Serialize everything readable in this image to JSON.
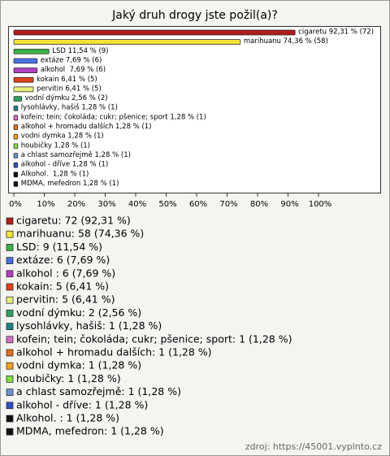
{
  "chart_data": {
    "type": "bar",
    "orientation": "horizontal",
    "title": "Jaký druh drogy jste požil(a)?",
    "bar_labels": [
      "cigaretu 92,31 % (72)",
      "marihuanu 74,36 % (58)",
      "LSD 11,54 % (9)",
      "extáze 7,69 % (6)",
      "alkohol  7,69 % (6)",
      "kokain 6,41 % (5)",
      "pervitin 6,41 % (5)",
      "vodní dýmku 2,56 % (2)",
      "lysohlávky, hašiš 1,28 % (1)",
      "kofein; tein; čokoláda; cukr; pšenice; sport 1,28 % (1)",
      "alkohol + hromadu dalších 1,28 % (1)",
      "vodni dymka 1,28 % (1)",
      "houbičky 1,28 % (1)",
      "a chlast samozřejmě 1,28 % (1)",
      "alkohol - dříve 1,28 % (1)",
      "Alkohol.  1,28 % (1)",
      "MDMA, mefedron 1,28 % (1)"
    ],
    "values": [
      92.31,
      74.36,
      11.54,
      7.69,
      7.69,
      6.41,
      6.41,
      2.56,
      1.28,
      1.28,
      1.28,
      1.28,
      1.28,
      1.28,
      1.28,
      1.28,
      1.28
    ],
    "colors": [
      "#b01c1c",
      "#f2e33a",
      "#3cb043",
      "#4a6fe3",
      "#b040c0",
      "#e0401c",
      "#e8f07a",
      "#2fa060",
      "#1e8080",
      "#d070c0",
      "#e07020",
      "#f0a020",
      "#80e040",
      "#7090d0",
      "#3050c0",
      "#111111",
      "#111111"
    ],
    "legend_labels": [
      "cigaretu: 72 (92,31 %)",
      "marihuanu: 58 (74,36 %)",
      "LSD: 9 (11,54 %)",
      "extáze: 6 (7,69 %)",
      "alkohol : 6 (7,69 %)",
      "kokain: 5 (6,41 %)",
      "pervitin: 5 (6,41 %)",
      "vodní dýmku: 2 (2,56 %)",
      "lysohlávky, hašiš: 1 (1,28 %)",
      "kofein; tein; čokoláda; cukr; pšenice; sport: 1 (1,28 %)",
      "alkohol + hromadu dalších: 1 (1,28 %)",
      "vodni dymka: 1 (1,28 %)",
      "houbičky: 1 (1,28 %)",
      "a chlast samozřejmě: 1 (1,28 %)",
      "alkohol - dříve: 1 (1,28 %)",
      "Alkohol. : 1 (1,28 %)",
      "MDMA, mefedron: 1 (1,28 %)"
    ],
    "xlim": [
      0,
      100
    ],
    "xticks": [
      {
        "value": 0,
        "label": "0%"
      },
      {
        "value": 10,
        "label": "10%"
      },
      {
        "value": 20,
        "label": "20%"
      },
      {
        "value": 30,
        "label": "30%"
      },
      {
        "value": 40,
        "label": "40%"
      },
      {
        "value": 50,
        "label": "50%"
      },
      {
        "value": 60,
        "label": "60%"
      },
      {
        "value": 70,
        "label": "70%"
      },
      {
        "value": 80,
        "label": "80%"
      },
      {
        "value": 90,
        "label": "90%"
      },
      {
        "value": 100,
        "label": "100%"
      }
    ],
    "source": "zdroj: https://45001.vyplnto.cz"
  }
}
